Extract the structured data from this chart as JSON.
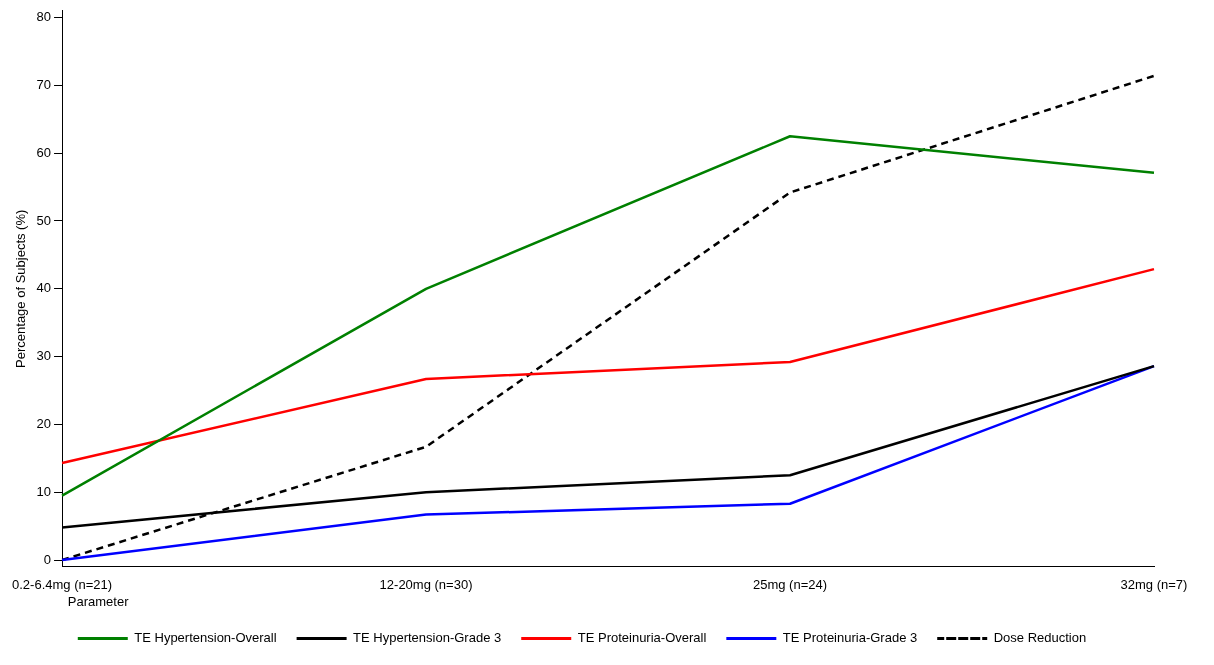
{
  "chart_data": {
    "type": "line",
    "ylabel": "Percentage of Subjects (%)",
    "legend_title": "Parameter",
    "legend": "bottom",
    "grid": false,
    "marker": "none",
    "categories": [
      "0.2-6.4mg (n=21)",
      "12-20mg (n=30)",
      "25mg (n=24)",
      "32mg (n=7)"
    ],
    "ylim": [
      -1,
      81
    ],
    "yticks": [
      0,
      10,
      20,
      30,
      40,
      50,
      60,
      70,
      80
    ],
    "series": [
      {
        "name": "TE Hypertension-Overall",
        "color": "#008000",
        "values": [
          9.5,
          40,
          62.5,
          57.1
        ]
      },
      {
        "name": "TE Hypertension-Grade 3",
        "color": "#000000",
        "values": [
          4.8,
          10,
          12.5,
          28.6
        ]
      },
      {
        "name": "TE Proteinuria-Overall",
        "color": "#ff0000",
        "values": [
          14.3,
          26.7,
          29.2,
          42.9
        ]
      },
      {
        "name": "TE Proteinuria-Grade 3",
        "color": "#0000ff",
        "values": [
          0,
          6.7,
          8.3,
          28.6
        ]
      },
      {
        "name": "Dose Reduction",
        "color": "#000000",
        "values": [
          0,
          16.7,
          54.2,
          71.4
        ],
        "line_style": "dashed"
      }
    ]
  }
}
